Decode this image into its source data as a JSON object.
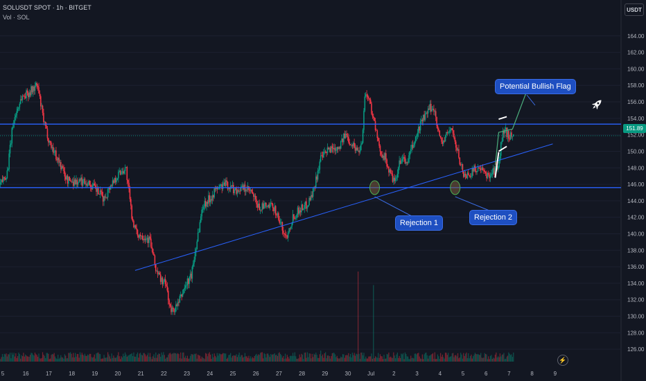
{
  "header": {
    "symbol_line": "SOLUSDT SPOT · 1h · BITGET",
    "volume_line": "Vol · SOL"
  },
  "currency_button": "USDT",
  "current_price": "151.89",
  "annotations": {
    "flag_label": "Potential Bullish Flag",
    "rejection1_label": "Rejection 1",
    "rejection2_label": "Rejection 2"
  },
  "icons": {
    "rocket": "rocket-icon",
    "bolt": "lightning-icon"
  },
  "colors": {
    "background": "#131722",
    "up": "#089981",
    "down": "#f23645",
    "level_line": "#2962ff",
    "callout": "#1e4fc1"
  },
  "chart_data": {
    "type": "candlestick",
    "title": "",
    "xlabel": "",
    "ylabel": "",
    "ylim": [
      124.5,
      166
    ],
    "y_ticks": [
      126,
      128,
      130,
      132,
      134,
      136,
      138,
      140,
      142,
      144,
      146,
      148,
      150,
      152,
      154,
      156,
      158,
      160,
      162,
      164
    ],
    "x_ticks": [
      "5",
      "16",
      "17",
      "18",
      "19",
      "20",
      "21",
      "22",
      "23",
      "24",
      "25",
      "26",
      "27",
      "28",
      "29",
      "30",
      "Jul",
      "2",
      "3",
      "4",
      "5",
      "6",
      "7",
      "8",
      "9"
    ],
    "current_price": 151.89,
    "horizontal_levels": [
      153.3,
      145.6
    ],
    "trendline": [
      {
        "x": 0.0,
        "y": 130.7
      },
      {
        "x": 23.9,
        "y": 150.9
      }
    ],
    "flag_lines": [
      {
        "from": {
          "x": 21.55,
          "y": 153.9
        },
        "to": {
          "x": 21.9,
          "y": 154.2
        }
      },
      {
        "from": {
          "x": 21.55,
          "y": 150.0
        },
        "to": {
          "x": 21.9,
          "y": 150.6
        }
      }
    ],
    "projection": [
      {
        "x": 21.4,
        "y": 148.3
      },
      {
        "x": 21.55,
        "y": 152.3
      },
      {
        "x": 22.15,
        "y": 152.7
      },
      {
        "x": 22.85,
        "y": 157.9
      }
    ],
    "rejection_points": [
      {
        "x": 16.16,
        "y": 145.6
      },
      {
        "x": 19.66,
        "y": 145.6
      }
    ],
    "price_path": [
      {
        "x": -0.25,
        "y": 145.2
      },
      {
        "x": 0.2,
        "y": 147.5
      },
      {
        "x": 0.45,
        "y": 153.5
      },
      {
        "x": 0.8,
        "y": 156.5
      },
      {
        "x": 1.2,
        "y": 157.3
      },
      {
        "x": 1.5,
        "y": 158.0
      },
      {
        "x": 1.8,
        "y": 153.3
      },
      {
        "x": 2.05,
        "y": 151.0
      },
      {
        "x": 2.4,
        "y": 149.0
      },
      {
        "x": 2.8,
        "y": 146.5
      },
      {
        "x": 3.2,
        "y": 146.3
      },
      {
        "x": 3.6,
        "y": 146.4
      },
      {
        "x": 4.0,
        "y": 145.5
      },
      {
        "x": 4.4,
        "y": 144.2
      },
      {
        "x": 4.7,
        "y": 146.0
      },
      {
        "x": 5.1,
        "y": 147.5
      },
      {
        "x": 5.35,
        "y": 148.0
      },
      {
        "x": 5.6,
        "y": 142.3
      },
      {
        "x": 5.8,
        "y": 140.0
      },
      {
        "x": 6.1,
        "y": 139.8
      },
      {
        "x": 6.4,
        "y": 139.2
      },
      {
        "x": 6.65,
        "y": 135.7
      },
      {
        "x": 6.85,
        "y": 134.5
      },
      {
        "x": 7.1,
        "y": 133.8
      },
      {
        "x": 7.3,
        "y": 130.5
      },
      {
        "x": 7.6,
        "y": 131.3
      },
      {
        "x": 7.9,
        "y": 133.5
      },
      {
        "x": 8.2,
        "y": 135.0
      },
      {
        "x": 8.45,
        "y": 139.5
      },
      {
        "x": 8.7,
        "y": 143.5
      },
      {
        "x": 9.0,
        "y": 144.3
      },
      {
        "x": 9.3,
        "y": 145.5
      },
      {
        "x": 9.7,
        "y": 146.0
      },
      {
        "x": 10.1,
        "y": 145.3
      },
      {
        "x": 10.5,
        "y": 145.5
      },
      {
        "x": 10.8,
        "y": 145.0
      },
      {
        "x": 11.1,
        "y": 143.2
      },
      {
        "x": 11.5,
        "y": 143.3
      },
      {
        "x": 11.8,
        "y": 143.2
      },
      {
        "x": 12.1,
        "y": 141.0
      },
      {
        "x": 12.3,
        "y": 139.5
      },
      {
        "x": 12.6,
        "y": 142.0
      },
      {
        "x": 12.9,
        "y": 143.0
      },
      {
        "x": 13.2,
        "y": 143.5
      },
      {
        "x": 13.5,
        "y": 145.2
      },
      {
        "x": 13.8,
        "y": 149.0
      },
      {
        "x": 14.2,
        "y": 150.3
      },
      {
        "x": 14.6,
        "y": 150.6
      },
      {
        "x": 14.9,
        "y": 152.0
      },
      {
        "x": 15.15,
        "y": 151.0
      },
      {
        "x": 15.45,
        "y": 150.0
      },
      {
        "x": 15.6,
        "y": 151.0
      },
      {
        "x": 15.75,
        "y": 157.3
      },
      {
        "x": 15.95,
        "y": 156.0
      },
      {
        "x": 16.15,
        "y": 153.5
      },
      {
        "x": 16.35,
        "y": 150.3
      },
      {
        "x": 16.6,
        "y": 149.3
      },
      {
        "x": 16.8,
        "y": 147.5
      },
      {
        "x": 17.05,
        "y": 146.0
      },
      {
        "x": 17.3,
        "y": 149.3
      },
      {
        "x": 17.55,
        "y": 148.5
      },
      {
        "x": 17.8,
        "y": 150.5
      },
      {
        "x": 18.0,
        "y": 152.0
      },
      {
        "x": 18.2,
        "y": 153.8
      },
      {
        "x": 18.4,
        "y": 154.3
      },
      {
        "x": 18.6,
        "y": 155.4
      },
      {
        "x": 18.8,
        "y": 154.7
      },
      {
        "x": 18.95,
        "y": 152.0
      },
      {
        "x": 19.1,
        "y": 151.0
      },
      {
        "x": 19.3,
        "y": 152.0
      },
      {
        "x": 19.5,
        "y": 153.0
      },
      {
        "x": 19.65,
        "y": 151.0
      },
      {
        "x": 19.85,
        "y": 149.0
      },
      {
        "x": 20.05,
        "y": 147.0
      },
      {
        "x": 20.3,
        "y": 147.3
      },
      {
        "x": 20.6,
        "y": 148.0
      },
      {
        "x": 20.85,
        "y": 147.5
      },
      {
        "x": 21.05,
        "y": 147.0
      },
      {
        "x": 21.3,
        "y": 147.6
      },
      {
        "x": 21.55,
        "y": 148.0
      },
      {
        "x": 21.7,
        "y": 152.0
      },
      {
        "x": 21.85,
        "y": 152.4
      },
      {
        "x": 22.05,
        "y": 151.8
      },
      {
        "x": 22.2,
        "y": 151.9
      }
    ],
    "volume_spikes": [
      {
        "x": 15.45,
        "v": 1.0
      },
      {
        "x": 16.1,
        "v": 0.85
      },
      {
        "x": 7.0,
        "v": 0.3
      },
      {
        "x": 13.8,
        "v": 0.35
      }
    ]
  }
}
